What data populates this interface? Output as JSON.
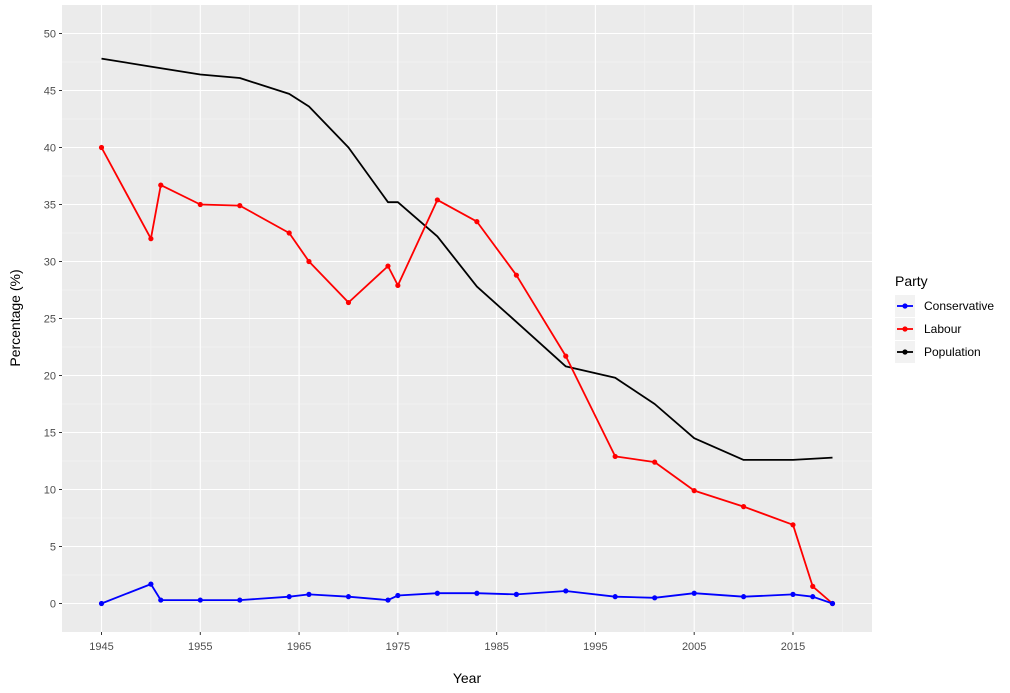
{
  "chart_data": {
    "type": "line",
    "xlabel": "Year",
    "ylabel": "Percentage (%)",
    "xlim": [
      1941,
      2023
    ],
    "ylim": [
      -2.5,
      52.5
    ],
    "x_ticks": [
      1945,
      1955,
      1965,
      1975,
      1985,
      1995,
      2005,
      2015
    ],
    "y_ticks": [
      0,
      5,
      10,
      15,
      20,
      25,
      30,
      35,
      40,
      45,
      50
    ],
    "grid": true,
    "legend": {
      "title": "Party",
      "position": "right"
    },
    "series": [
      {
        "name": "Conservative",
        "color": "#0000ff",
        "markers": true,
        "x": [
          1945,
          1950,
          1951,
          1955,
          1959,
          1964,
          1966,
          1970,
          1974,
          1975,
          1979,
          1983,
          1987,
          1992,
          1997,
          2001,
          2005,
          2010,
          2015,
          2017,
          2019
        ],
        "y": [
          0,
          1.7,
          0.3,
          0.3,
          0.3,
          0.6,
          0.8,
          0.6,
          0.3,
          0.7,
          0.9,
          0.9,
          0.8,
          1.1,
          0.6,
          0.5,
          0.9,
          0.6,
          0.8,
          0.6,
          0
        ]
      },
      {
        "name": "Labour",
        "color": "#ff0000",
        "markers": true,
        "x": [
          1945,
          1950,
          1951,
          1955,
          1959,
          1964,
          1966,
          1970,
          1974,
          1975,
          1979,
          1983,
          1987,
          1992,
          1997,
          2001,
          2005,
          2010,
          2015,
          2017,
          2019
        ],
        "y": [
          40.0,
          32.0,
          36.7,
          35.0,
          34.9,
          32.5,
          30.0,
          26.4,
          29.6,
          27.9,
          35.4,
          33.5,
          28.8,
          21.7,
          12.9,
          12.4,
          9.9,
          8.5,
          6.9,
          1.5,
          0
        ]
      },
      {
        "name": "Population",
        "color": "#000000",
        "markers": false,
        "x": [
          1945,
          1950,
          1955,
          1959,
          1964,
          1966,
          1970,
          1974,
          1975,
          1979,
          1983,
          1987,
          1992,
          1997,
          2001,
          2005,
          2010,
          2015,
          2019
        ],
        "y": [
          47.8,
          47.1,
          46.4,
          46.1,
          44.7,
          43.6,
          40.0,
          35.2,
          35.2,
          32.2,
          27.8,
          24.7,
          20.8,
          19.8,
          17.5,
          14.5,
          12.6,
          12.6,
          12.8
        ]
      }
    ]
  }
}
